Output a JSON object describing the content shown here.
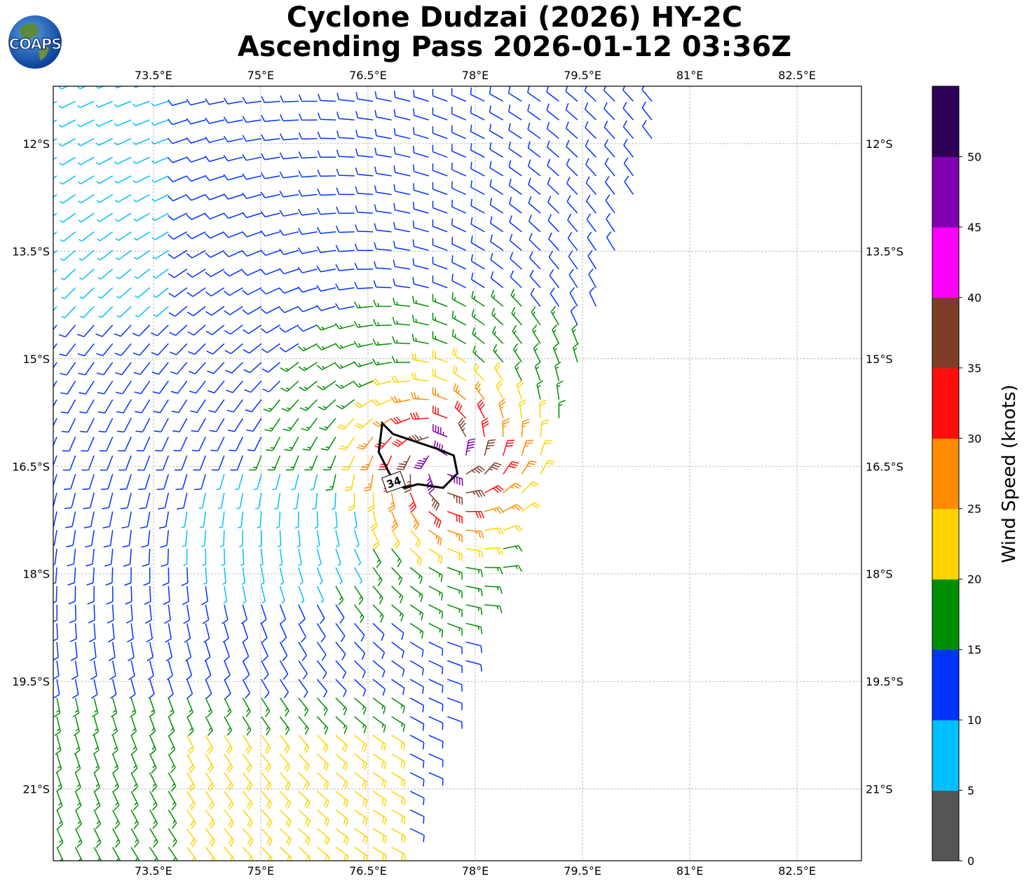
{
  "title": {
    "line1": "Cyclone Dudzai (2026) HY-2C",
    "line2": "Ascending Pass 2026-01-12 03:36Z"
  },
  "logo": {
    "text": "COAPS"
  },
  "map": {
    "lon_labels": [
      "73.5°E",
      "75°E",
      "76.5°E",
      "78°E",
      "79.5°E",
      "81°E",
      "82.5°E"
    ],
    "lat_labels": [
      "12°S",
      "13.5°S",
      "15°S",
      "16.5°S",
      "18°S",
      "19.5°S",
      "21°S"
    ],
    "contour_label": "34"
  },
  "colorbar": {
    "label": "Wind Speed (knots)",
    "ticks": [
      "0",
      "5",
      "10",
      "15",
      "20",
      "25",
      "30",
      "35",
      "40",
      "45",
      "50"
    ],
    "colors": [
      "#555555",
      "#00bfff",
      "#0033ff",
      "#008f00",
      "#ffd400",
      "#ff8c00",
      "#ff0d0d",
      "#7f3d28",
      "#ff00ff",
      "#8000b0",
      "#2e0058"
    ]
  },
  "chart_data": {
    "type": "wind-barb-map",
    "lon_range": [
      72.1,
      83.4
    ],
    "lat_range": [
      -22.0,
      -11.2
    ],
    "storm_center": {
      "lon": 77.6,
      "lat": -16.4
    },
    "swath_east_edge": [
      [
        80.8,
        -11.2
      ],
      [
        79.5,
        -15.0
      ],
      [
        78.8,
        -17.0
      ],
      [
        78.0,
        -19.0
      ],
      [
        77.3,
        -21.0
      ],
      [
        77.0,
        -22.0
      ]
    ],
    "contour_34kt": {
      "level": 34,
      "path": [
        [
          76.7,
          -15.9
        ],
        [
          76.75,
          -15.95
        ],
        [
          76.85,
          -16.05
        ],
        [
          77.15,
          -16.15
        ],
        [
          77.45,
          -16.25
        ],
        [
          77.7,
          -16.35
        ],
        [
          77.75,
          -16.6
        ],
        [
          77.55,
          -16.8
        ],
        [
          77.2,
          -16.75
        ],
        [
          77.0,
          -16.8
        ],
        [
          76.8,
          -16.6
        ],
        [
          76.65,
          -16.3
        ],
        [
          76.7,
          -15.9
        ]
      ]
    },
    "legend": "colorbar right",
    "speed_bins_knots": [
      0,
      5,
      10,
      15,
      20,
      25,
      30,
      35,
      40,
      45,
      50,
      55
    ]
  }
}
